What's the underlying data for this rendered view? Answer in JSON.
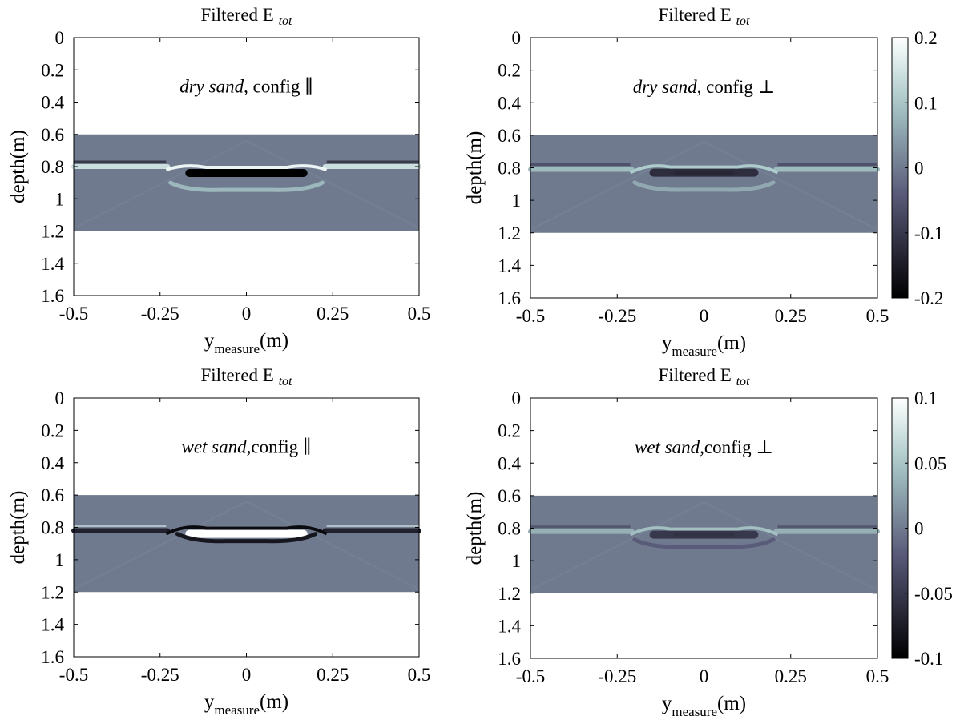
{
  "figure": {
    "panels": [
      {
        "title": "Filtered E",
        "title_sub": "tot",
        "annotation": {
          "italic": "dry sand",
          "rest": ", config ∥"
        },
        "xlabel": "y",
        "xlabel_sub": "measure",
        "xlabel_unit": "(m)",
        "ylabel": "depth(m)",
        "xticks": [
          "-0.5",
          "-0.25",
          "0",
          "0.25",
          "0.5"
        ],
        "yticks": [
          "0",
          "0.2",
          "0.4",
          "0.6",
          "0.8",
          "1",
          "1.2",
          "1.4",
          "1.6"
        ],
        "colorbar": null
      },
      {
        "title": "Filtered E",
        "title_sub": "tot",
        "annotation": {
          "italic": "dry sand",
          "rest": ", config ⊥"
        },
        "xlabel": "y",
        "xlabel_sub": "measure",
        "xlabel_unit": "(m)",
        "ylabel": "depth(m)",
        "xticks": [
          "-0.5",
          "-0.25",
          "0",
          "0.25",
          "0.5"
        ],
        "yticks": [
          "0",
          "0.2",
          "0.4",
          "0.6",
          "0.8",
          "1",
          "1.2",
          "1.4",
          "1.6"
        ],
        "colorbar": {
          "ticks": [
            "0.2",
            "0.1",
            "0",
            "-0.1",
            "-0.2"
          ]
        }
      },
      {
        "title": "Filtered E",
        "title_sub": "tot",
        "annotation": {
          "italic": "wet sand",
          "rest": ",config ∥"
        },
        "xlabel": "y",
        "xlabel_sub": "measure",
        "xlabel_unit": "(m)",
        "ylabel": "depth(m)",
        "xticks": [
          "-0.5",
          "-0.25",
          "0",
          "0.25",
          "0.5"
        ],
        "yticks": [
          "0",
          "0.2",
          "0.4",
          "0.6",
          "0.8",
          "1",
          "1.2",
          "1.4",
          "1.6"
        ],
        "colorbar": null
      },
      {
        "title": "Filtered E",
        "title_sub": "tot",
        "annotation": {
          "italic": "wet sand",
          "rest": ",config ⊥"
        },
        "xlabel": "y",
        "xlabel_sub": "measure",
        "xlabel_unit": "(m)",
        "ylabel": "depth(m)",
        "xticks": [
          "-0.5",
          "-0.25",
          "0",
          "0.25",
          "0.5"
        ],
        "yticks": [
          "0",
          "0.2",
          "0.4",
          "0.6",
          "0.8",
          "1",
          "1.2",
          "1.4",
          "1.6"
        ],
        "colorbar": {
          "ticks": [
            "0.1",
            "0.05",
            "0",
            "-0.05",
            "-0.1"
          ]
        }
      }
    ]
  },
  "chart_data": [
    {
      "type": "heatmap",
      "title": "Filtered E_tot",
      "annotation": "dry sand, config ∥",
      "xlabel": "y_measure(m)",
      "ylabel": "depth(m)",
      "xlim": [
        -0.5,
        0.5
      ],
      "ylim": [
        1.6,
        0
      ],
      "y_reversed": true,
      "data_extent": {
        "x": [
          -0.5,
          0.5
        ],
        "depth": [
          0.6,
          1.2
        ]
      },
      "background_value": 0,
      "clim": [
        -0.2,
        0.2
      ],
      "colormap": "bone",
      "reflections": [
        {
          "depth_edges": 0.8,
          "depth_center": 0.84,
          "extent_center": [
            -0.2,
            0.2
          ],
          "sign_center": -1,
          "amplitude": 0.2
        },
        {
          "depth": 0.93,
          "extent": [
            -0.22,
            0.22
          ],
          "sign": 1,
          "amplitude": 0.08
        }
      ]
    },
    {
      "type": "heatmap",
      "title": "Filtered E_tot",
      "annotation": "dry sand, config ⊥",
      "xlabel": "y_measure(m)",
      "ylabel": "depth(m)",
      "xlim": [
        -0.5,
        0.5
      ],
      "ylim": [
        1.6,
        0
      ],
      "y_reversed": true,
      "data_extent": {
        "x": [
          -0.5,
          0.5
        ],
        "depth": [
          0.6,
          1.2
        ]
      },
      "background_value": 0,
      "clim": [
        -0.2,
        0.2
      ],
      "colormap": "bone",
      "reflections": [
        {
          "depth_edges": 0.81,
          "depth_center": 0.83,
          "extent_center": [
            -0.18,
            0.18
          ],
          "sign_center": -1,
          "amplitude": 0.12
        },
        {
          "depth": 0.92,
          "extent": [
            -0.2,
            0.2
          ],
          "sign": 1,
          "amplitude": 0.06
        }
      ]
    },
    {
      "type": "heatmap",
      "title": "Filtered E_tot",
      "annotation": "wet sand,config ∥",
      "xlabel": "y_measure(m)",
      "ylabel": "depth(m)",
      "xlim": [
        -0.5,
        0.5
      ],
      "ylim": [
        1.6,
        0
      ],
      "y_reversed": true,
      "data_extent": {
        "x": [
          -0.5,
          0.5
        ],
        "depth": [
          0.6,
          1.2
        ]
      },
      "background_value": 0,
      "clim": [
        -0.1,
        0.1
      ],
      "colormap": "bone",
      "reflections": [
        {
          "depth_edges": 0.82,
          "depth_center": 0.84,
          "extent_center": [
            -0.2,
            0.2
          ],
          "sign_center": 1,
          "amplitude": 0.1
        },
        {
          "depth": 0.87,
          "extent": [
            -0.2,
            0.2
          ],
          "sign": -1,
          "amplitude": 0.08
        }
      ]
    },
    {
      "type": "heatmap",
      "title": "Filtered E_tot",
      "annotation": "wet sand,config ⊥",
      "xlabel": "y_measure(m)",
      "ylabel": "depth(m)",
      "xlim": [
        -0.5,
        0.5
      ],
      "ylim": [
        1.6,
        0
      ],
      "y_reversed": true,
      "data_extent": {
        "x": [
          -0.5,
          0.5
        ],
        "depth": [
          0.6,
          1.2
        ]
      },
      "background_value": 0,
      "clim": [
        -0.1,
        0.1
      ],
      "colormap": "bone",
      "reflections": [
        {
          "depth_edges": 0.82,
          "depth_center": 0.84,
          "extent_center": [
            -0.18,
            0.18
          ],
          "sign_center": -1,
          "amplitude": 0.05
        },
        {
          "depth": 0.9,
          "extent": [
            -0.2,
            0.2
          ],
          "sign": -1,
          "amplitude": 0.02
        }
      ]
    }
  ]
}
